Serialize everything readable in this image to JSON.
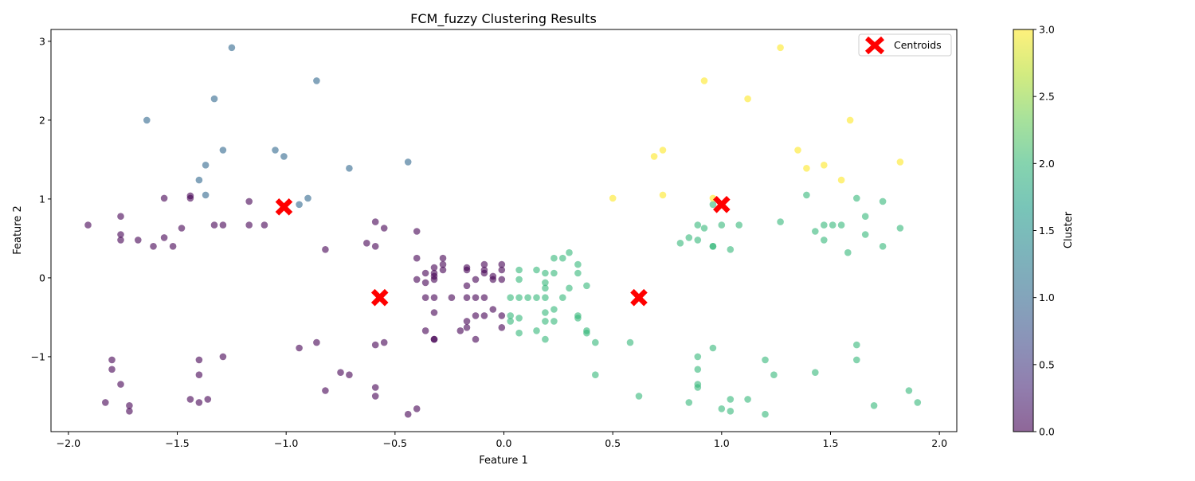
{
  "chart_data": {
    "type": "scatter",
    "title": "FCM_fuzzy Clustering Results",
    "xlabel": "Feature 1",
    "ylabel": "Feature 2",
    "xlim": [
      -2.08,
      2.08
    ],
    "ylim": [
      -1.95,
      3.15
    ],
    "xticks": [
      -2.0,
      -1.5,
      -1.0,
      -0.5,
      0.0,
      0.5,
      1.0,
      1.5,
      2.0
    ],
    "xtick_labels": [
      "−2.0",
      "−1.5",
      "−1.0",
      "−0.5",
      "0.0",
      "0.5",
      "1.0",
      "1.5",
      "2.0"
    ],
    "yticks": [
      -1,
      0,
      1,
      2,
      3
    ],
    "ytick_labels": [
      "−1",
      "0",
      "1",
      "2",
      "3"
    ],
    "grid": false,
    "legend": {
      "placement": "top-right",
      "entries": [
        "Centroids"
      ]
    },
    "colorbar": {
      "label": "Cluster",
      "range": [
        0.0,
        3.0
      ],
      "ticks": [
        0.0,
        0.5,
        1.0,
        1.5,
        2.0,
        2.5,
        3.0
      ],
      "tick_labels": [
        "0.0",
        "0.5",
        "1.0",
        "1.5",
        "2.0",
        "2.5",
        "3.0"
      ],
      "colormap": "viridis"
    },
    "point_alpha": 0.6,
    "cluster_colors": {
      "0": "#440154",
      "1": "#31688e",
      "2": "#35b779",
      "3": "#fde725"
    },
    "centroid_color": "#ff0000",
    "series": [
      {
        "cluster": 0,
        "points": [
          [
            -1.91,
            0.67
          ],
          [
            -1.76,
            0.78
          ],
          [
            -1.76,
            0.55
          ],
          [
            -1.76,
            0.48
          ],
          [
            -1.68,
            0.48
          ],
          [
            -1.61,
            0.4
          ],
          [
            -1.56,
            0.51
          ],
          [
            -1.52,
            0.4
          ],
          [
            -1.48,
            0.63
          ],
          [
            -1.56,
            1.01
          ],
          [
            -1.44,
            1.04
          ],
          [
            -1.44,
            1.01
          ],
          [
            -1.33,
            0.67
          ],
          [
            -1.29,
            0.67
          ],
          [
            -1.17,
            0.97
          ],
          [
            -1.17,
            0.67
          ],
          [
            -1.1,
            0.67
          ],
          [
            -0.82,
            0.36
          ],
          [
            -0.63,
            0.44
          ],
          [
            -0.59,
            0.71
          ],
          [
            -0.59,
            0.4
          ],
          [
            -0.55,
            0.63
          ],
          [
            -0.4,
            0.59
          ],
          [
            -0.4,
            0.25
          ],
          [
            -0.4,
            -0.02
          ],
          [
            -0.36,
            0.06
          ],
          [
            -0.36,
            -0.06
          ],
          [
            -0.36,
            -0.25
          ],
          [
            -0.32,
            0.13
          ],
          [
            -0.32,
            0.06
          ],
          [
            -0.32,
            0.02
          ],
          [
            -0.32,
            -0.02
          ],
          [
            -0.32,
            -0.25
          ],
          [
            -0.28,
            0.25
          ],
          [
            -0.28,
            0.17
          ],
          [
            -0.28,
            0.1
          ],
          [
            -0.24,
            -0.25
          ],
          [
            -0.17,
            0.13
          ],
          [
            -0.17,
            0.1
          ],
          [
            -0.17,
            -0.1
          ],
          [
            -0.17,
            -0.25
          ],
          [
            -0.13,
            -0.02
          ],
          [
            -0.13,
            -0.25
          ],
          [
            -0.09,
            0.17
          ],
          [
            -0.09,
            0.1
          ],
          [
            -0.09,
            0.06
          ],
          [
            -0.09,
            -0.25
          ],
          [
            -0.05,
            0.02
          ],
          [
            -0.05,
            -0.02
          ],
          [
            -0.01,
            0.17
          ],
          [
            -0.01,
            0.1
          ],
          [
            -0.01,
            -0.02
          ],
          [
            -0.32,
            -0.44
          ],
          [
            -0.36,
            -0.67
          ],
          [
            -0.32,
            -0.78
          ],
          [
            -0.32,
            -0.78
          ],
          [
            -0.2,
            -0.67
          ],
          [
            -0.17,
            -0.55
          ],
          [
            -0.17,
            -0.63
          ],
          [
            -0.13,
            -0.48
          ],
          [
            -0.13,
            -0.78
          ],
          [
            -0.09,
            -0.48
          ],
          [
            -0.05,
            -0.4
          ],
          [
            -0.01,
            -0.48
          ],
          [
            -0.01,
            -0.63
          ],
          [
            -1.8,
            -1.04
          ],
          [
            -1.8,
            -1.16
          ],
          [
            -1.76,
            -1.35
          ],
          [
            -1.83,
            -1.58
          ],
          [
            -1.72,
            -1.62
          ],
          [
            -1.72,
            -1.69
          ],
          [
            -1.44,
            -1.54
          ],
          [
            -1.4,
            -1.58
          ],
          [
            -1.36,
            -1.54
          ],
          [
            -1.4,
            -1.04
          ],
          [
            -1.4,
            -1.23
          ],
          [
            -1.29,
            -1.0
          ],
          [
            -0.94,
            -0.89
          ],
          [
            -0.86,
            -0.82
          ],
          [
            -0.82,
            -1.43
          ],
          [
            -0.75,
            -1.2
          ],
          [
            -0.71,
            -1.23
          ],
          [
            -0.59,
            -0.85
          ],
          [
            -0.55,
            -0.82
          ],
          [
            -0.59,
            -1.39
          ],
          [
            -0.59,
            -1.5
          ],
          [
            -0.44,
            -1.73
          ],
          [
            -0.4,
            -1.66
          ]
        ]
      },
      {
        "cluster": 1,
        "points": [
          [
            -1.25,
            2.92
          ],
          [
            -0.86,
            2.5
          ],
          [
            -1.33,
            2.27
          ],
          [
            -1.64,
            2.0
          ],
          [
            -1.29,
            1.62
          ],
          [
            -1.05,
            1.62
          ],
          [
            -1.01,
            1.54
          ],
          [
            -1.37,
            1.43
          ],
          [
            -0.71,
            1.39
          ],
          [
            -0.44,
            1.47
          ],
          [
            -1.4,
            1.24
          ],
          [
            -1.37,
            1.05
          ],
          [
            -0.9,
            1.01
          ],
          [
            -0.94,
            0.93
          ]
        ]
      },
      {
        "cluster": 2,
        "points": [
          [
            0.03,
            -0.25
          ],
          [
            0.03,
            -0.48
          ],
          [
            0.03,
            -0.55
          ],
          [
            0.07,
            0.1
          ],
          [
            0.07,
            -0.02
          ],
          [
            0.07,
            -0.25
          ],
          [
            0.07,
            -0.51
          ],
          [
            0.07,
            -0.7
          ],
          [
            0.11,
            -0.25
          ],
          [
            0.15,
            0.1
          ],
          [
            0.15,
            -0.25
          ],
          [
            0.15,
            -0.67
          ],
          [
            0.19,
            0.06
          ],
          [
            0.19,
            -0.06
          ],
          [
            0.19,
            -0.13
          ],
          [
            0.19,
            -0.25
          ],
          [
            0.19,
            -0.44
          ],
          [
            0.19,
            -0.55
          ],
          [
            0.19,
            -0.78
          ],
          [
            0.23,
            0.25
          ],
          [
            0.23,
            0.06
          ],
          [
            0.23,
            -0.4
          ],
          [
            0.23,
            -0.55
          ],
          [
            0.27,
            0.25
          ],
          [
            0.27,
            -0.25
          ],
          [
            0.3,
            0.32
          ],
          [
            0.3,
            -0.13
          ],
          [
            0.34,
            0.17
          ],
          [
            0.34,
            0.06
          ],
          [
            0.34,
            -0.48
          ],
          [
            0.34,
            -0.51
          ],
          [
            0.38,
            -0.1
          ],
          [
            0.38,
            -0.67
          ],
          [
            0.38,
            -0.7
          ],
          [
            0.42,
            -0.82
          ],
          [
            0.42,
            -1.23
          ],
          [
            0.58,
            -0.82
          ],
          [
            0.62,
            -1.5
          ],
          [
            0.81,
            0.44
          ],
          [
            0.85,
            0.51
          ],
          [
            0.89,
            0.67
          ],
          [
            0.89,
            0.48
          ],
          [
            0.92,
            0.63
          ],
          [
            0.96,
            0.93
          ],
          [
            0.96,
            0.4
          ],
          [
            0.96,
            0.4
          ],
          [
            1.0,
            0.67
          ],
          [
            1.04,
            0.36
          ],
          [
            1.08,
            0.67
          ],
          [
            1.27,
            0.71
          ],
          [
            1.39,
            1.05
          ],
          [
            1.43,
            0.59
          ],
          [
            1.47,
            0.67
          ],
          [
            1.47,
            0.48
          ],
          [
            1.51,
            0.67
          ],
          [
            1.55,
            0.67
          ],
          [
            1.58,
            0.32
          ],
          [
            1.62,
            1.01
          ],
          [
            1.66,
            0.78
          ],
          [
            1.66,
            0.55
          ],
          [
            1.74,
            0.97
          ],
          [
            1.74,
            0.4
          ],
          [
            1.82,
            0.63
          ],
          [
            0.85,
            -1.58
          ],
          [
            0.89,
            -1.0
          ],
          [
            0.89,
            -1.16
          ],
          [
            0.89,
            -1.35
          ],
          [
            0.89,
            -1.39
          ],
          [
            0.96,
            -0.89
          ],
          [
            1.0,
            -1.66
          ],
          [
            1.04,
            -1.54
          ],
          [
            1.04,
            -1.69
          ],
          [
            1.12,
            -1.54
          ],
          [
            1.2,
            -1.04
          ],
          [
            1.2,
            -1.73
          ],
          [
            1.24,
            -1.23
          ],
          [
            1.43,
            -1.2
          ],
          [
            1.62,
            -0.85
          ],
          [
            1.62,
            -1.04
          ],
          [
            1.7,
            -1.62
          ],
          [
            1.86,
            -1.43
          ],
          [
            1.9,
            -1.58
          ]
        ]
      },
      {
        "cluster": 3,
        "points": [
          [
            1.27,
            2.92
          ],
          [
            0.92,
            2.5
          ],
          [
            1.12,
            2.27
          ],
          [
            1.59,
            2.0
          ],
          [
            0.73,
            1.62
          ],
          [
            0.69,
            1.54
          ],
          [
            1.35,
            1.62
          ],
          [
            1.39,
            1.39
          ],
          [
            1.47,
            1.43
          ],
          [
            1.82,
            1.47
          ],
          [
            1.55,
            1.24
          ],
          [
            0.5,
            1.01
          ],
          [
            0.73,
            1.05
          ],
          [
            0.96,
            1.01
          ],
          [
            1.0,
            0.93
          ]
        ]
      }
    ],
    "centroids": [
      [
        -1.01,
        0.9
      ],
      [
        -0.57,
        -0.25
      ],
      [
        0.62,
        -0.25
      ],
      [
        1.0,
        0.93
      ]
    ]
  }
}
